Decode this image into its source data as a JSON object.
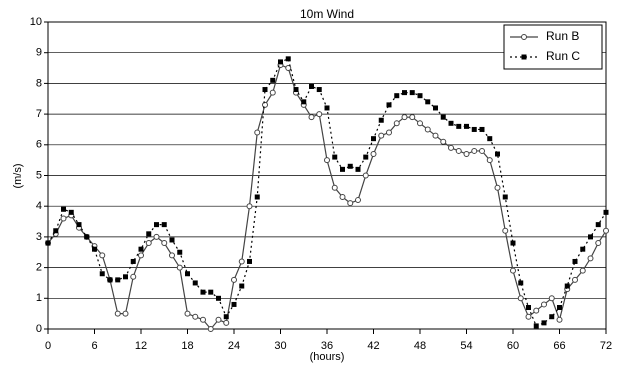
{
  "chart_data": {
    "type": "line",
    "title": "10m Wind",
    "xlabel": "(hours)",
    "ylabel": "(m/s)",
    "x": [
      0,
      1,
      2,
      3,
      4,
      5,
      6,
      7,
      8,
      9,
      10,
      11,
      12,
      13,
      14,
      15,
      16,
      17,
      18,
      19,
      20,
      21,
      22,
      23,
      24,
      25,
      26,
      27,
      28,
      29,
      30,
      31,
      32,
      33,
      34,
      35,
      36,
      37,
      38,
      39,
      40,
      41,
      42,
      43,
      44,
      45,
      46,
      47,
      48,
      49,
      50,
      51,
      52,
      53,
      54,
      55,
      56,
      57,
      58,
      59,
      60,
      61,
      62,
      63,
      64,
      65,
      66,
      67,
      68,
      69,
      70,
      71,
      72
    ],
    "series": [
      {
        "name": "Run B",
        "color": "#444444",
        "marker": "circle",
        "linestyle": "solid",
        "values": [
          2.8,
          3.1,
          3.6,
          3.7,
          3.3,
          3.0,
          2.7,
          2.4,
          1.6,
          0.5,
          0.5,
          1.7,
          2.4,
          2.8,
          3.0,
          2.8,
          2.4,
          2.0,
          0.5,
          0.4,
          0.3,
          0.0,
          0.3,
          0.2,
          1.6,
          2.2,
          4.0,
          6.4,
          7.3,
          7.7,
          8.6,
          8.5,
          7.7,
          7.3,
          6.9,
          7.0,
          5.5,
          4.6,
          4.3,
          4.1,
          4.2,
          5.0,
          5.7,
          6.3,
          6.4,
          6.7,
          6.9,
          6.9,
          6.7,
          6.5,
          6.3,
          6.1,
          5.9,
          5.8,
          5.7,
          5.8,
          5.8,
          5.5,
          4.6,
          3.2,
          1.9,
          1.0,
          0.4,
          0.6,
          0.8,
          1.0,
          0.3,
          1.3,
          1.6,
          1.9,
          2.3,
          2.8,
          3.2
        ]
      },
      {
        "name": "Run C",
        "color": "#000000",
        "marker": "square",
        "linestyle": "dotted",
        "values": [
          2.8,
          3.2,
          3.9,
          3.8,
          3.4,
          3.0,
          2.6,
          1.8,
          1.6,
          1.6,
          1.7,
          2.2,
          2.6,
          3.1,
          3.4,
          3.4,
          2.9,
          2.5,
          1.8,
          1.5,
          1.2,
          1.2,
          1.0,
          0.4,
          0.8,
          1.4,
          2.2,
          4.3,
          7.8,
          8.1,
          8.7,
          8.8,
          7.8,
          7.4,
          7.9,
          7.8,
          7.2,
          5.6,
          5.2,
          5.3,
          5.2,
          5.6,
          6.2,
          6.8,
          7.3,
          7.6,
          7.7,
          7.7,
          7.6,
          7.4,
          7.2,
          6.9,
          6.7,
          6.6,
          6.6,
          6.5,
          6.5,
          6.2,
          5.7,
          4.3,
          2.8,
          1.5,
          0.7,
          0.1,
          0.2,
          0.4,
          0.7,
          1.4,
          2.2,
          2.6,
          3.0,
          3.4,
          3.8
        ]
      }
    ],
    "xlim": [
      0,
      72
    ],
    "xticks": [
      0,
      6,
      12,
      18,
      24,
      30,
      36,
      42,
      48,
      54,
      60,
      66,
      72
    ],
    "ylim": [
      0,
      10
    ],
    "yticks": [
      0,
      1,
      2,
      3,
      4,
      5,
      6,
      7,
      8,
      9,
      10
    ],
    "grid": true,
    "legend": "upper right"
  }
}
